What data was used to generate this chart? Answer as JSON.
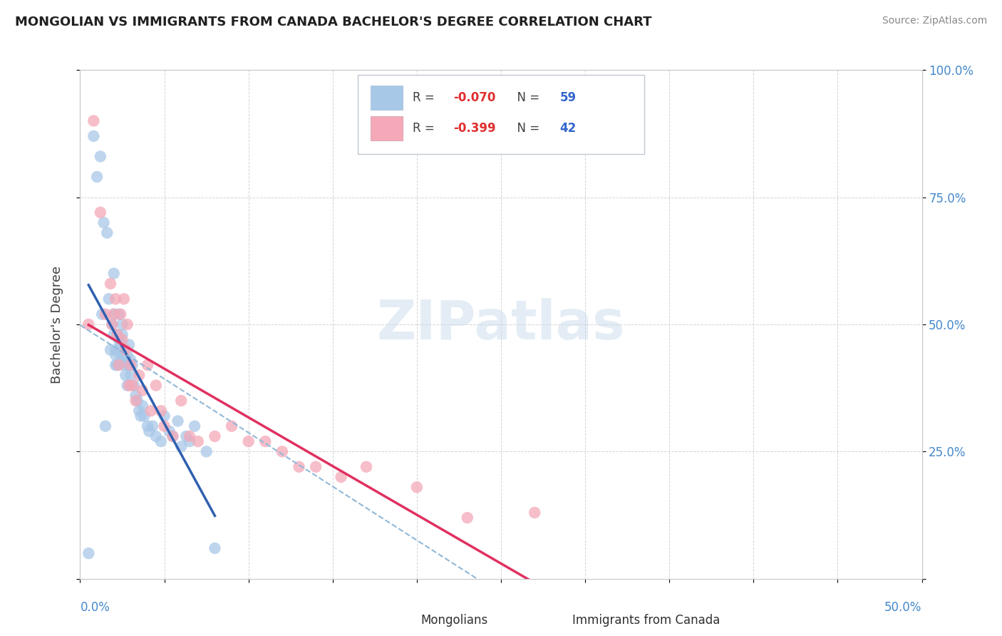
{
  "title": "MONGOLIAN VS IMMIGRANTS FROM CANADA BACHELOR'S DEGREE CORRELATION CHART",
  "source": "Source: ZipAtlas.com",
  "ylabel": "Bachelor's Degree",
  "xlim": [
    0.0,
    50.0
  ],
  "ylim": [
    0.0,
    100.0
  ],
  "yticks": [
    0.0,
    25.0,
    50.0,
    75.0,
    100.0
  ],
  "ytick_labels_left": [
    "",
    "25.0%",
    "50.0%",
    "75.0%",
    "100.0%"
  ],
  "ytick_labels_right": [
    "",
    "25.0%",
    "50.0%",
    "75.0%",
    "100.0%"
  ],
  "xtick_label_left": "0.0%",
  "xtick_label_right": "50.0%",
  "watermark": "ZIPatlas",
  "mongolian_color": "#a8c8e8",
  "immigrant_color": "#f4a8b8",
  "mongolian_line_color": "#3060b0",
  "immigrant_line_color": "#e03060",
  "dashed_line_color": "#90b8d8",
  "background_color": "#ffffff",
  "grid_color": "#d0d0d0",
  "title_color": "#202020",
  "axis_label_color": "#4488cc",
  "legend_box_color": "#ffffff",
  "legend_border_color": "#c0c8d0",
  "mongolian_x": [
    0.5,
    0.8,
    1.0,
    1.2,
    1.3,
    1.4,
    1.5,
    1.6,
    1.7,
    1.8,
    1.9,
    2.0,
    2.0,
    2.0,
    2.1,
    2.1,
    2.1,
    2.2,
    2.2,
    2.3,
    2.3,
    2.4,
    2.4,
    2.5,
    2.5,
    2.5,
    2.6,
    2.6,
    2.7,
    2.7,
    2.8,
    2.8,
    2.9,
    2.9,
    3.0,
    3.0,
    3.1,
    3.2,
    3.3,
    3.4,
    3.5,
    3.6,
    3.7,
    3.8,
    4.0,
    4.1,
    4.3,
    4.5,
    4.8,
    5.0,
    5.3,
    5.5,
    5.8,
    6.0,
    6.3,
    6.5,
    6.8,
    7.5,
    8.0
  ],
  "mongolian_y": [
    5.0,
    87.0,
    79.0,
    83.0,
    52.0,
    70.0,
    30.0,
    68.0,
    55.0,
    45.0,
    50.0,
    60.0,
    52.0,
    48.0,
    45.0,
    44.0,
    42.0,
    48.0,
    42.0,
    52.0,
    47.0,
    46.0,
    44.0,
    50.0,
    43.0,
    48.0,
    42.0,
    45.0,
    43.0,
    40.0,
    44.0,
    38.0,
    46.0,
    42.0,
    43.0,
    40.0,
    42.0,
    38.0,
    36.0,
    35.0,
    33.0,
    32.0,
    34.0,
    32.0,
    30.0,
    29.0,
    30.0,
    28.0,
    27.0,
    32.0,
    29.0,
    28.0,
    31.0,
    26.0,
    28.0,
    27.0,
    30.0,
    25.0,
    6.0
  ],
  "immigrant_x": [
    0.5,
    0.8,
    1.2,
    1.5,
    1.8,
    1.9,
    2.0,
    2.1,
    2.2,
    2.3,
    2.4,
    2.5,
    2.6,
    2.7,
    2.8,
    2.9,
    3.0,
    3.1,
    3.3,
    3.5,
    3.7,
    4.0,
    4.2,
    4.5,
    4.8,
    5.0,
    5.5,
    6.0,
    6.5,
    7.0,
    8.0,
    9.0,
    10.0,
    11.0,
    12.0,
    13.0,
    14.0,
    15.5,
    17.0,
    20.0,
    23.0,
    27.0
  ],
  "immigrant_y": [
    50.0,
    90.0,
    72.0,
    52.0,
    58.0,
    50.0,
    52.0,
    55.0,
    48.0,
    42.0,
    52.0,
    47.0,
    55.0,
    45.0,
    50.0,
    38.0,
    42.0,
    38.0,
    35.0,
    40.0,
    37.0,
    42.0,
    33.0,
    38.0,
    33.0,
    30.0,
    28.0,
    35.0,
    28.0,
    27.0,
    28.0,
    30.0,
    27.0,
    27.0,
    25.0,
    22.0,
    22.0,
    20.0,
    22.0,
    18.0,
    12.0,
    13.0
  ]
}
